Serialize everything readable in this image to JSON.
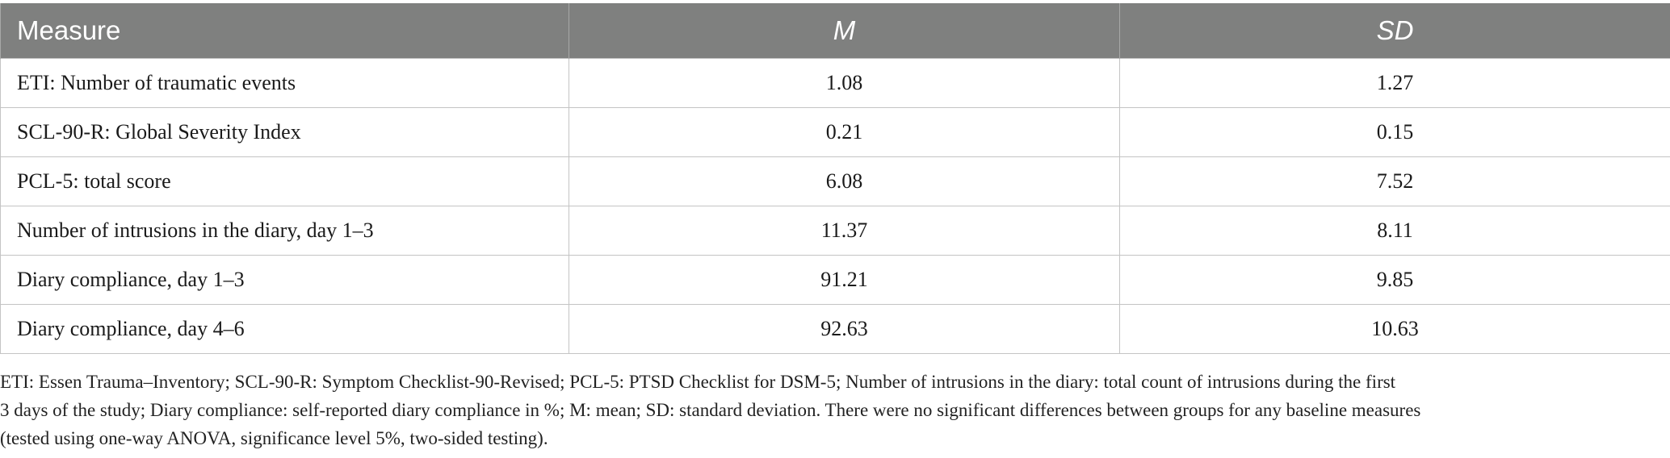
{
  "table": {
    "headers": {
      "measure": "Measure",
      "mean": "M",
      "sd": "SD"
    },
    "rows": [
      {
        "measure": "ETI: Number of traumatic events",
        "mean": "1.08",
        "sd": "1.27"
      },
      {
        "measure": "SCL-90-R: Global Severity Index",
        "mean": "0.21",
        "sd": "0.15"
      },
      {
        "measure": "PCL-5: total score",
        "mean": "6.08",
        "sd": "7.52"
      },
      {
        "measure": "Number of intrusions in the diary, day 1–3",
        "mean": "11.37",
        "sd": "8.11"
      },
      {
        "measure": "Diary compliance, day 1–3",
        "mean": "91.21",
        "sd": "9.85"
      },
      {
        "measure": "Diary compliance, day 4–6",
        "mean": "92.63",
        "sd": "10.63"
      }
    ]
  },
  "footnote": {
    "line1": "ETI: Essen Trauma–Inventory; SCL-90-R: Symptom Checklist-90-Revised; PCL-5: PTSD Checklist for DSM-5; Number of intrusions in the diary: total count of intrusions during the first",
    "line2": "3 days of the study; Diary compliance: self-reported diary compliance in %; M: mean; SD: standard deviation. There were no significant differences between groups for any baseline measures",
    "line3": "(tested using one-way ANOVA, significance level 5%, two-sided testing)."
  },
  "colors": {
    "header_bg": "#7f807f",
    "header_text": "#ffffff",
    "grid_line": "#c4c4c4"
  }
}
